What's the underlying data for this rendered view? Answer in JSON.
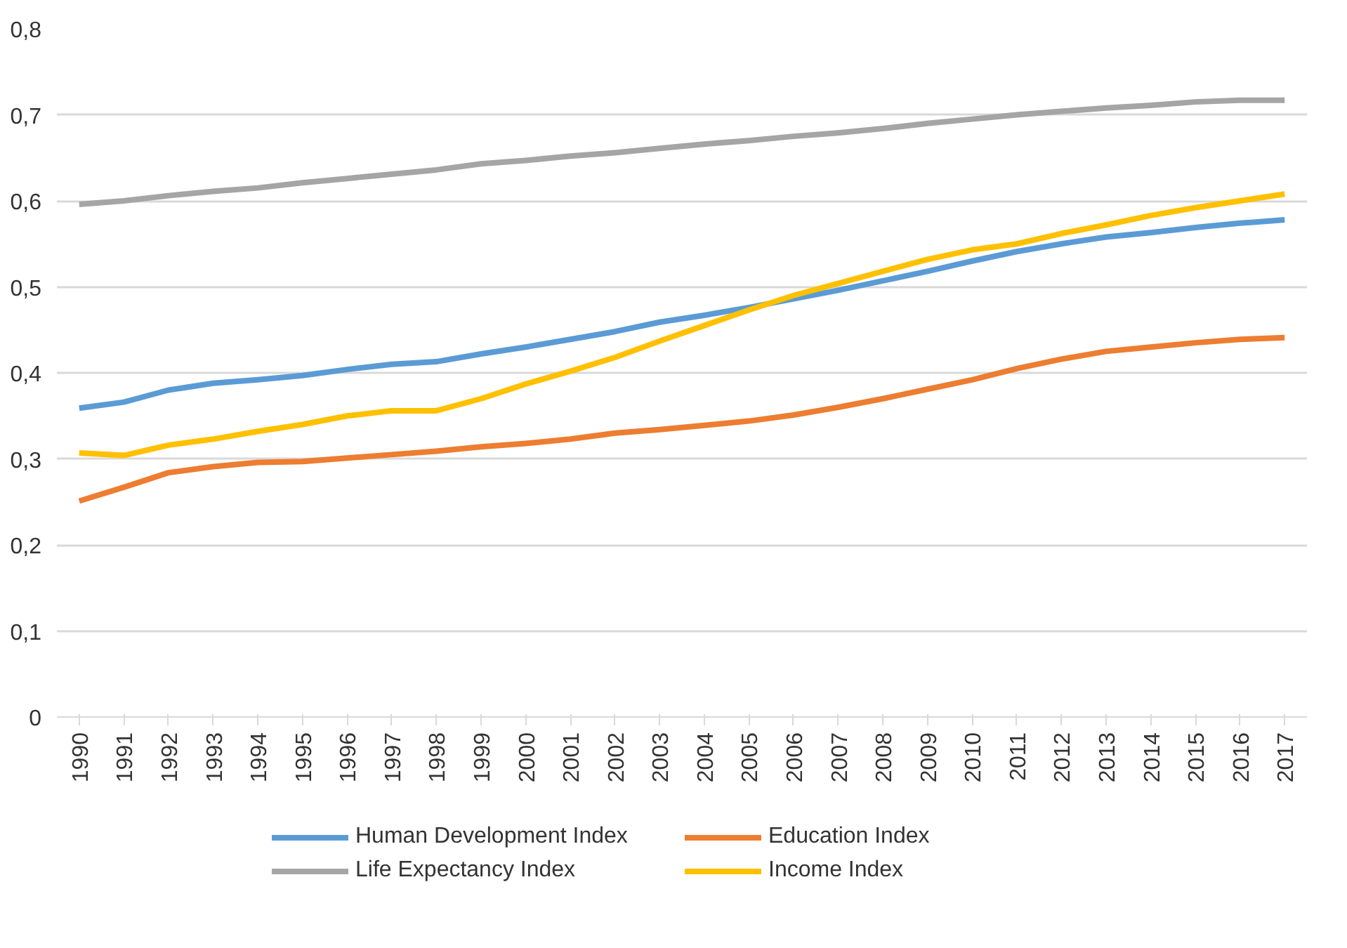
{
  "chart_data": {
    "type": "line",
    "categories": [
      "1990",
      "1991",
      "1992",
      "1993",
      "1994",
      "1995",
      "1996",
      "1997",
      "1998",
      "1999",
      "2000",
      "2001",
      "2002",
      "2003",
      "2004",
      "2005",
      "2006",
      "2007",
      "2008",
      "2009",
      "2010",
      "2011",
      "2012",
      "2013",
      "2014",
      "2015",
      "2016",
      "2017"
    ],
    "series": [
      {
        "name": "Human Development Index",
        "color": "#5b9bd5",
        "values": [
          0.359,
          0.366,
          0.38,
          0.388,
          0.392,
          0.397,
          0.404,
          0.41,
          0.413,
          0.422,
          0.43,
          0.439,
          0.448,
          0.459,
          0.467,
          0.476,
          0.486,
          0.496,
          0.507,
          0.518,
          0.53,
          0.541,
          0.55,
          0.558,
          0.563,
          0.569,
          0.574,
          0.578
        ]
      },
      {
        "name": "Education Index",
        "color": "#ed7d31",
        "values": [
          0.251,
          0.267,
          0.284,
          0.291,
          0.296,
          0.297,
          0.301,
          0.305,
          0.309,
          0.314,
          0.318,
          0.323,
          0.33,
          0.334,
          0.339,
          0.344,
          0.351,
          0.36,
          0.37,
          0.381,
          0.392,
          0.405,
          0.416,
          0.425,
          0.43,
          0.435,
          0.439,
          0.441
        ]
      },
      {
        "name": "Life Expectancy Index",
        "color": "#a5a5a5",
        "values": [
          0.596,
          0.6,
          0.606,
          0.611,
          0.615,
          0.621,
          0.626,
          0.631,
          0.636,
          0.643,
          0.647,
          0.652,
          0.656,
          0.661,
          0.666,
          0.67,
          0.675,
          0.679,
          0.684,
          0.69,
          0.695,
          0.7,
          0.704,
          0.708,
          0.711,
          0.715,
          0.717,
          0.717
        ]
      },
      {
        "name": "Income Index",
        "color": "#ffc000",
        "values": [
          0.307,
          0.304,
          0.316,
          0.323,
          0.332,
          0.34,
          0.35,
          0.356,
          0.356,
          0.37,
          0.387,
          0.402,
          0.418,
          0.437,
          0.455,
          0.473,
          0.49,
          0.504,
          0.518,
          0.532,
          0.543,
          0.55,
          0.562,
          0.572,
          0.583,
          0.592,
          0.6,
          0.608
        ]
      }
    ],
    "ylim": [
      0,
      0.8
    ],
    "yticks": [
      {
        "value": 0,
        "label": "0"
      },
      {
        "value": 0.1,
        "label": "0,1"
      },
      {
        "value": 0.2,
        "label": "0,2"
      },
      {
        "value": 0.3,
        "label": "0,3"
      },
      {
        "value": 0.4,
        "label": "0,4"
      },
      {
        "value": 0.5,
        "label": "0,5"
      },
      {
        "value": 0.6,
        "label": "0,6"
      },
      {
        "value": 0.7,
        "label": "0,7"
      },
      {
        "value": 0.8,
        "label": "0,8"
      }
    ],
    "grid": "y",
    "legend": "bottom",
    "marker": "none",
    "line_style": "solid"
  }
}
